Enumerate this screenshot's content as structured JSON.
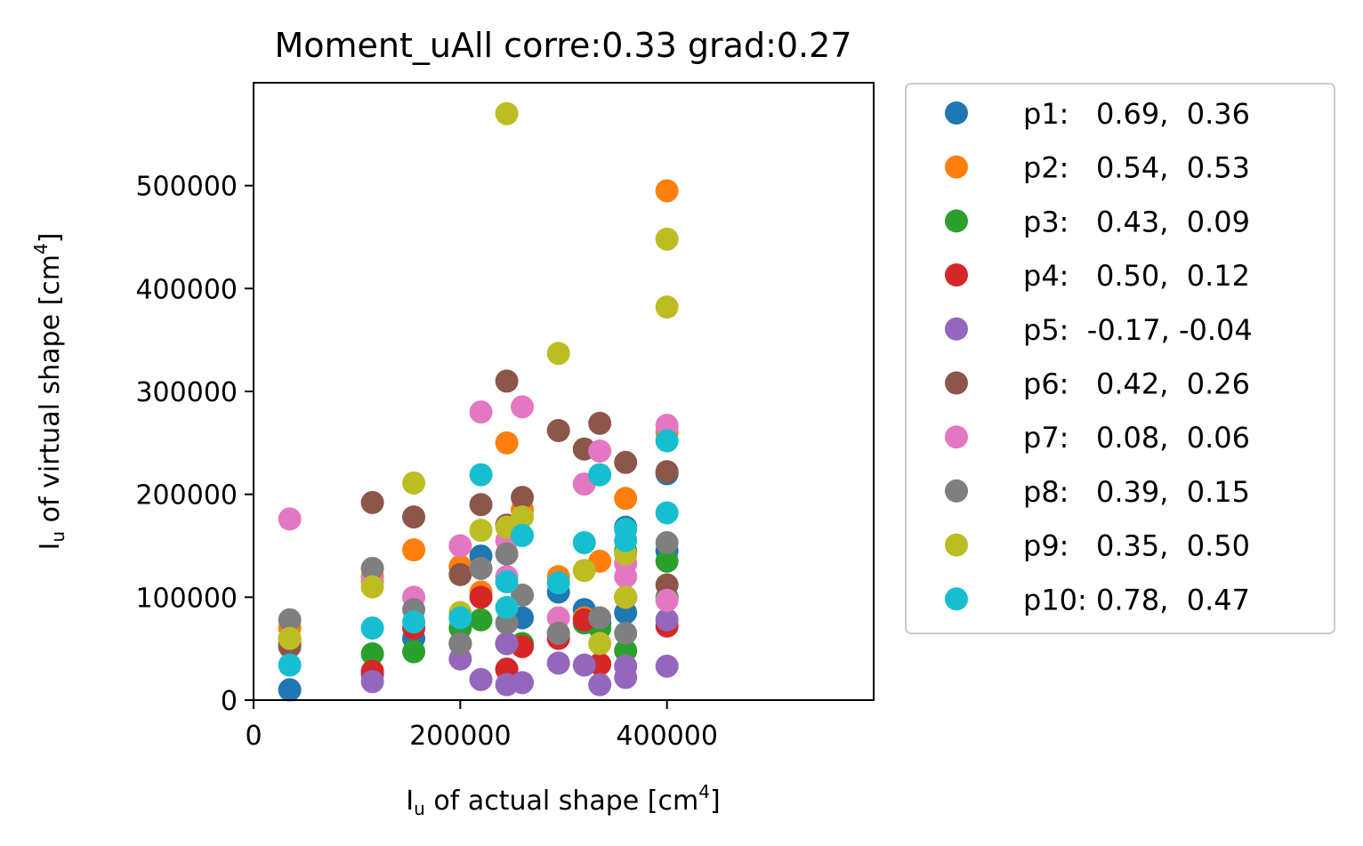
{
  "chart_data": {
    "type": "scatter",
    "title": "Moment_uAll corre:0.33 grad:0.27",
    "xlabel": {
      "base": "I",
      "sub": "u",
      "text": " of actual shape [cm",
      "sup": "4",
      "end": "]"
    },
    "ylabel": {
      "base": "I",
      "sub": "u",
      "text": " of virtual shape [cm",
      "sup": "4",
      "end": "]"
    },
    "xlim": [
      0,
      600000
    ],
    "ylim": [
      0,
      600000
    ],
    "xticks": [
      0,
      200000,
      400000
    ],
    "xtick_labels": [
      "0",
      "200000",
      "400000"
    ],
    "yticks": [
      0,
      100000,
      200000,
      300000,
      400000,
      500000
    ],
    "ytick_labels": [
      "0",
      "100000",
      "200000",
      "300000",
      "400000",
      "500000"
    ],
    "grid": false,
    "legend_position": "outside-right",
    "series": [
      {
        "name": "p1",
        "label": "p1:   0.69,  0.36",
        "color": "#1f77b4",
        "points": [
          [
            35000,
            10000
          ],
          [
            115000,
            25000
          ],
          [
            155000,
            60000
          ],
          [
            200000,
            55000
          ],
          [
            220000,
            140000
          ],
          [
            245000,
            55000
          ],
          [
            245000,
            30000
          ],
          [
            260000,
            80000
          ],
          [
            295000,
            105000
          ],
          [
            320000,
            88000
          ],
          [
            335000,
            75000
          ],
          [
            360000,
            85000
          ],
          [
            360000,
            168000
          ],
          [
            400000,
            220000
          ],
          [
            400000,
            145000
          ]
        ]
      },
      {
        "name": "p2",
        "label": "p2:   0.54,  0.53",
        "color": "#ff7f0e",
        "points": [
          [
            35000,
            70000
          ],
          [
            115000,
            120000
          ],
          [
            155000,
            146000
          ],
          [
            200000,
            130000
          ],
          [
            220000,
            105000
          ],
          [
            245000,
            250000
          ],
          [
            245000,
            170000
          ],
          [
            260000,
            185000
          ],
          [
            295000,
            120000
          ],
          [
            320000,
            80000
          ],
          [
            335000,
            135000
          ],
          [
            360000,
            196000
          ],
          [
            360000,
            100000
          ],
          [
            400000,
            495000
          ],
          [
            400000,
            260000
          ]
        ]
      },
      {
        "name": "p3",
        "label": "p3:   0.43,  0.09",
        "color": "#2ca02c",
        "points": [
          [
            35000,
            60000
          ],
          [
            115000,
            45000
          ],
          [
            155000,
            47000
          ],
          [
            200000,
            70000
          ],
          [
            220000,
            78000
          ],
          [
            245000,
            55000
          ],
          [
            260000,
            55000
          ],
          [
            295000,
            65000
          ],
          [
            320000,
            75000
          ],
          [
            335000,
            70000
          ],
          [
            360000,
            48000
          ],
          [
            360000,
            145000
          ],
          [
            400000,
            135000
          ],
          [
            400000,
            100000
          ]
        ]
      },
      {
        "name": "p4",
        "label": "p4:   0.50,  0.12",
        "color": "#d62728",
        "points": [
          [
            35000,
            55000
          ],
          [
            115000,
            28000
          ],
          [
            155000,
            70000
          ],
          [
            200000,
            55000
          ],
          [
            220000,
            100000
          ],
          [
            245000,
            30000
          ],
          [
            260000,
            52000
          ],
          [
            295000,
            60000
          ],
          [
            320000,
            78000
          ],
          [
            335000,
            35000
          ],
          [
            360000,
            100000
          ],
          [
            400000,
            72000
          ]
        ]
      },
      {
        "name": "p5",
        "label": "p5:  -0.17, -0.04",
        "color": "#9467bd",
        "points": [
          [
            115000,
            18000
          ],
          [
            200000,
            40000
          ],
          [
            220000,
            20000
          ],
          [
            245000,
            15000
          ],
          [
            245000,
            55000
          ],
          [
            260000,
            17000
          ],
          [
            295000,
            36000
          ],
          [
            320000,
            34000
          ],
          [
            335000,
            15000
          ],
          [
            360000,
            22000
          ],
          [
            360000,
            33000
          ],
          [
            400000,
            78000
          ],
          [
            400000,
            33000
          ]
        ]
      },
      {
        "name": "p6",
        "label": "p6:   0.42,  0.26",
        "color": "#8c564b",
        "points": [
          [
            35000,
            52000
          ],
          [
            115000,
            192000
          ],
          [
            155000,
            178000
          ],
          [
            200000,
            122000
          ],
          [
            220000,
            190000
          ],
          [
            245000,
            310000
          ],
          [
            245000,
            170000
          ],
          [
            260000,
            197000
          ],
          [
            295000,
            262000
          ],
          [
            320000,
            244000
          ],
          [
            335000,
            269000
          ],
          [
            360000,
            231000
          ],
          [
            400000,
            222000
          ],
          [
            400000,
            112000
          ]
        ]
      },
      {
        "name": "p7",
        "label": "p7:   0.08,  0.06",
        "color": "#e377c2",
        "points": [
          [
            35000,
            176000
          ],
          [
            115000,
            115000
          ],
          [
            155000,
            100000
          ],
          [
            200000,
            150000
          ],
          [
            220000,
            280000
          ],
          [
            245000,
            120000
          ],
          [
            245000,
            155000
          ],
          [
            260000,
            285000
          ],
          [
            295000,
            80000
          ],
          [
            320000,
            210000
          ],
          [
            335000,
            242000
          ],
          [
            360000,
            120000
          ],
          [
            360000,
            133000
          ],
          [
            400000,
            267000
          ],
          [
            400000,
            97000
          ]
        ]
      },
      {
        "name": "p8",
        "label": "p8:   0.39,  0.15",
        "color": "#7f7f7f",
        "points": [
          [
            35000,
            78000
          ],
          [
            115000,
            128000
          ],
          [
            155000,
            88000
          ],
          [
            200000,
            55000
          ],
          [
            220000,
            128000
          ],
          [
            245000,
            142000
          ],
          [
            245000,
            75000
          ],
          [
            260000,
            102000
          ],
          [
            295000,
            65000
          ],
          [
            335000,
            80000
          ],
          [
            360000,
            65000
          ],
          [
            400000,
            153000
          ]
        ]
      },
      {
        "name": "p9",
        "label": "p9:   0.35,  0.50",
        "color": "#bcbd22",
        "points": [
          [
            35000,
            60000
          ],
          [
            115000,
            110000
          ],
          [
            155000,
            211000
          ],
          [
            200000,
            85000
          ],
          [
            220000,
            165000
          ],
          [
            245000,
            570000
          ],
          [
            245000,
            168000
          ],
          [
            260000,
            178000
          ],
          [
            295000,
            337000
          ],
          [
            320000,
            126000
          ],
          [
            335000,
            55000
          ],
          [
            360000,
            100000
          ],
          [
            360000,
            142000
          ],
          [
            400000,
            448000
          ],
          [
            400000,
            382000
          ]
        ]
      },
      {
        "name": "p10",
        "label": "p10: 0.78,  0.47",
        "color": "#17becf",
        "points": [
          [
            35000,
            34000
          ],
          [
            115000,
            70000
          ],
          [
            155000,
            76000
          ],
          [
            200000,
            80000
          ],
          [
            220000,
            219000
          ],
          [
            245000,
            90000
          ],
          [
            245000,
            115000
          ],
          [
            260000,
            160000
          ],
          [
            295000,
            114000
          ],
          [
            320000,
            153000
          ],
          [
            335000,
            219000
          ],
          [
            360000,
            166000
          ],
          [
            360000,
            155000
          ],
          [
            400000,
            252000
          ],
          [
            400000,
            182000
          ]
        ]
      }
    ]
  }
}
